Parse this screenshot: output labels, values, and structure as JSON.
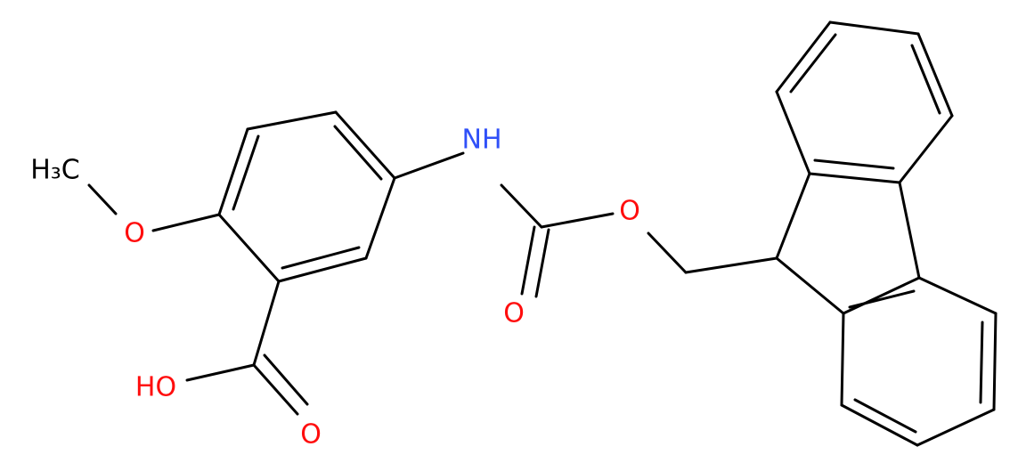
{
  "nodes": [
    {
      "label": "H₃C"
    },
    {
      "label": "O"
    },
    {
      "label": "HO"
    },
    {
      "label": "O"
    },
    {
      "label": "NH"
    },
    {
      "label": "O"
    },
    {
      "label": "O"
    }
  ]
}
